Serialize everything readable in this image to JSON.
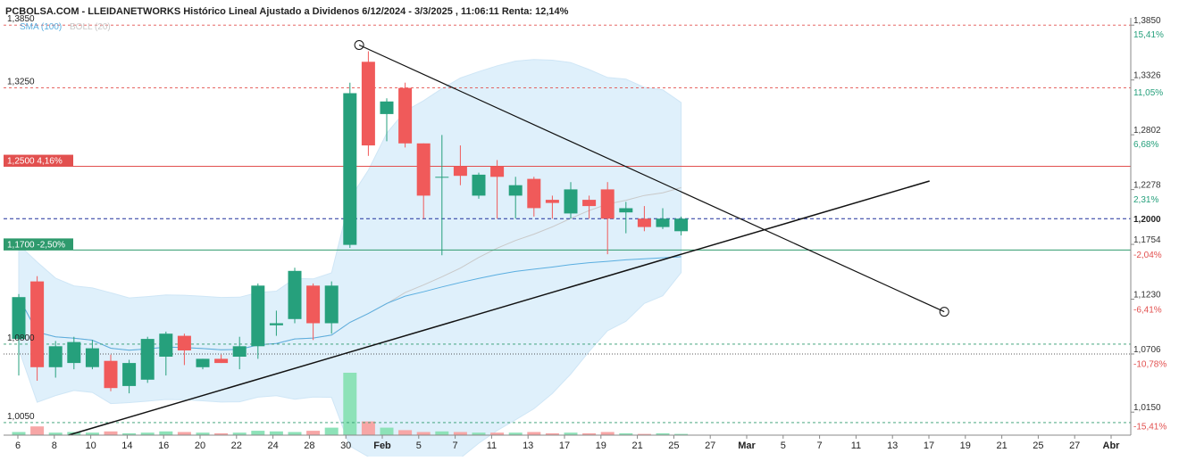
{
  "title": "PCBOLSA.COM - LLEIDANETWORKS Histórico Lineal Ajustado a Dividenos 6/12/2024 - 3/3/2025 , 11:06:11 Renta: 12,14%",
  "indicators": {
    "sma": "SMA (100)",
    "boll": "BOLL (20)",
    "sma_color": "#5aaee0",
    "boll_color": "#c9c9c9"
  },
  "colors": {
    "up": "#26a07c",
    "down": "#f05a5a",
    "band_fill": "#dff0fb",
    "red_line": "#e2504f",
    "green_line": "#2e9a6d",
    "blue_dash": "#1f2f9c"
  },
  "chart_data": {
    "type": "candlestick",
    "ylim": [
      0.993,
      1.392
    ],
    "x_ticks": [
      "6",
      "8",
      "10",
      "14",
      "16",
      "20",
      "22",
      "24",
      "28",
      "30",
      "Feb",
      "5",
      "7",
      "11",
      "13",
      "17",
      "19",
      "21",
      "25",
      "27",
      "Mar",
      "5",
      "7",
      "11",
      "13",
      "17",
      "19",
      "21",
      "25",
      "27",
      "Abr"
    ],
    "y_ticks": [
      "1,3850",
      "1,3326",
      "1,2802",
      "1,2278",
      "1,1754",
      "1,1230",
      "1,0706",
      "1,0150"
    ],
    "y_tick_values": [
      1.385,
      1.3326,
      1.2802,
      1.2278,
      1.1754,
      1.123,
      1.0706,
      1.015
    ],
    "pct_ticks": [
      {
        "value": 1.376,
        "label": "15,41%"
      },
      {
        "value": 1.3204,
        "label": "11,05%"
      },
      {
        "value": 1.2708,
        "label": "6,68%"
      },
      {
        "value": 1.218,
        "label": "2,31%"
      },
      {
        "value": 1.1652,
        "label": "-2,04%"
      },
      {
        "value": 1.1128,
        "label": "-6,41%"
      },
      {
        "value": 1.0608,
        "label": "-10,78%"
      },
      {
        "value": 1.001,
        "label": "-15,41%"
      }
    ],
    "left_levels": [
      {
        "value": 1.385,
        "label": "1,3850"
      },
      {
        "value": 1.325,
        "label": "1,3250"
      },
      {
        "value": 1.08,
        "label": "1,0800"
      },
      {
        "value": 1.005,
        "label": "1,0050"
      }
    ],
    "hlines": [
      {
        "value": 1.25,
        "label": "1,2500",
        "pct": "4,16%",
        "style": "solid-red"
      },
      {
        "value": 1.2,
        "label": "1,2000",
        "style": "dash-blue"
      },
      {
        "value": 1.17,
        "label": "1,1700",
        "pct": "-2,50%",
        "style": "solid-green"
      }
    ],
    "candles": [
      {
        "o": 1.085,
        "h": 1.128,
        "l": 1.05,
        "c": 1.125
      },
      {
        "o": 1.14,
        "h": 1.145,
        "l": 1.045,
        "c": 1.058
      },
      {
        "o": 1.058,
        "h": 1.083,
        "l": 1.048,
        "c": 1.078
      },
      {
        "o": 1.062,
        "h": 1.087,
        "l": 1.056,
        "c": 1.082
      },
      {
        "o": 1.058,
        "h": 1.084,
        "l": 1.056,
        "c": 1.076
      },
      {
        "o": 1.064,
        "h": 1.07,
        "l": 1.035,
        "c": 1.038
      },
      {
        "o": 1.04,
        "h": 1.065,
        "l": 1.033,
        "c": 1.062
      },
      {
        "o": 1.046,
        "h": 1.087,
        "l": 1.043,
        "c": 1.085
      },
      {
        "o": 1.068,
        "h": 1.092,
        "l": 1.05,
        "c": 1.09
      },
      {
        "o": 1.088,
        "h": 1.09,
        "l": 1.06,
        "c": 1.074
      },
      {
        "o": 1.058,
        "h": 1.066,
        "l": 1.056,
        "c": 1.066
      },
      {
        "o": 1.066,
        "h": 1.07,
        "l": 1.062,
        "c": 1.062
      },
      {
        "o": 1.068,
        "h": 1.087,
        "l": 1.056,
        "c": 1.078
      },
      {
        "o": 1.078,
        "h": 1.138,
        "l": 1.066,
        "c": 1.136
      },
      {
        "o": 1.098,
        "h": 1.112,
        "l": 1.088,
        "c": 1.1
      },
      {
        "o": 1.104,
        "h": 1.153,
        "l": 1.1,
        "c": 1.15
      },
      {
        "o": 1.136,
        "h": 1.138,
        "l": 1.084,
        "c": 1.1
      },
      {
        "o": 1.1,
        "h": 1.14,
        "l": 1.09,
        "c": 1.136
      },
      {
        "o": 1.175,
        "h": 1.33,
        "l": 1.172,
        "c": 1.32
      },
      {
        "o": 1.35,
        "h": 1.36,
        "l": 1.26,
        "c": 1.27
      },
      {
        "o": 1.3,
        "h": 1.315,
        "l": 1.274,
        "c": 1.312
      },
      {
        "o": 1.325,
        "h": 1.33,
        "l": 1.268,
        "c": 1.272
      },
      {
        "o": 1.272,
        "h": 1.272,
        "l": 1.2,
        "c": 1.222
      },
      {
        "o": 1.24,
        "h": 1.28,
        "l": 1.165,
        "c": 1.24
      },
      {
        "o": 1.25,
        "h": 1.27,
        "l": 1.232,
        "c": 1.241
      },
      {
        "o": 1.222,
        "h": 1.244,
        "l": 1.219,
        "c": 1.242
      },
      {
        "o": 1.25,
        "h": 1.256,
        "l": 1.2,
        "c": 1.24
      },
      {
        "o": 1.222,
        "h": 1.24,
        "l": 1.2,
        "c": 1.232
      },
      {
        "o": 1.238,
        "h": 1.24,
        "l": 1.202,
        "c": 1.21
      },
      {
        "o": 1.218,
        "h": 1.222,
        "l": 1.2,
        "c": 1.215
      },
      {
        "o": 1.205,
        "h": 1.235,
        "l": 1.2,
        "c": 1.228
      },
      {
        "o": 1.218,
        "h": 1.222,
        "l": 1.2,
        "c": 1.212
      },
      {
        "o": 1.228,
        "h": 1.235,
        "l": 1.166,
        "c": 1.2
      },
      {
        "o": 1.206,
        "h": 1.216,
        "l": 1.186,
        "c": 1.21
      },
      {
        "o": 1.2,
        "h": 1.212,
        "l": 1.188,
        "c": 1.192
      },
      {
        "o": 1.192,
        "h": 1.21,
        "l": 1.19,
        "c": 1.2
      },
      {
        "o": 1.188,
        "h": 1.202,
        "l": 1.184,
        "c": 1.2
      }
    ],
    "volume_rel": [
      0.05,
      0.14,
      0.04,
      0.05,
      0.04,
      0.06,
      0.03,
      0.04,
      0.06,
      0.05,
      0.04,
      0.03,
      0.04,
      0.07,
      0.06,
      0.05,
      0.07,
      0.12,
      1.0,
      0.22,
      0.12,
      0.08,
      0.05,
      0.06,
      0.05,
      0.04,
      0.04,
      0.04,
      0.05,
      0.03,
      0.04,
      0.03,
      0.05,
      0.03,
      0.02,
      0.03,
      0.02
    ]
  }
}
